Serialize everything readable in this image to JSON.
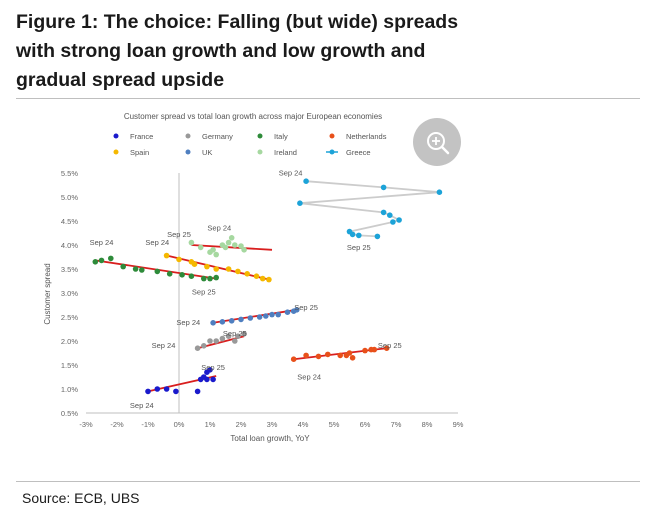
{
  "figure": {
    "title": "Figure 1: The choice: Falling (but wide) spreads with strong loan growth and low growth and gradual spread upside",
    "source": "Source: ECB, UBS"
  },
  "zoom_icon": "zoom-in-icon",
  "chart_data": {
    "type": "scatter",
    "title": "Customer spread vs total loan growth across major European economies",
    "xlabel": "Total loan growth, YoY",
    "ylabel": "Customer spread",
    "xlim": [
      -3,
      9
    ],
    "ylim": [
      0.5,
      5.5
    ],
    "x_ticks": [
      "-3%",
      "-2%",
      "-1%",
      "0%",
      "1%",
      "2%",
      "3%",
      "4%",
      "5%",
      "6%",
      "7%",
      "8%",
      "9%"
    ],
    "y_ticks": [
      "0.5%",
      "1.0%",
      "1.5%",
      "2.0%",
      "2.5%",
      "3.0%",
      "3.5%",
      "4.0%",
      "4.5%",
      "5.0%",
      "5.5%"
    ],
    "grid": false,
    "legend_position": "top",
    "series": [
      {
        "name": "France",
        "color": "#1a1acc",
        "trend": [
          [
            -1.0,
            0.95
          ],
          [
            1.2,
            1.27
          ]
        ],
        "points": [
          [
            -1.0,
            0.95
          ],
          [
            -0.7,
            1.0
          ],
          [
            -0.4,
            1.0
          ],
          [
            -0.1,
            0.95
          ],
          [
            0.6,
            0.95
          ],
          [
            0.7,
            1.2
          ],
          [
            0.8,
            1.25
          ],
          [
            0.9,
            1.2
          ],
          [
            0.9,
            1.35
          ],
          [
            1.0,
            1.4
          ],
          [
            1.1,
            1.2
          ]
        ]
      },
      {
        "name": "Germany",
        "color": "#999999",
        "trend": [
          [
            0.6,
            1.85
          ],
          [
            2.1,
            2.1
          ]
        ],
        "points": [
          [
            0.6,
            1.85
          ],
          [
            0.8,
            1.9
          ],
          [
            1.0,
            2.0
          ],
          [
            1.2,
            2.0
          ],
          [
            1.4,
            2.05
          ],
          [
            1.6,
            2.1
          ],
          [
            1.8,
            2.0
          ],
          [
            1.9,
            2.1
          ],
          [
            2.1,
            2.15
          ]
        ]
      },
      {
        "name": "Italy",
        "color": "#2e8b3a",
        "trend": [
          [
            -2.7,
            3.68
          ],
          [
            1.2,
            3.3
          ]
        ],
        "points": [
          [
            -2.7,
            3.65
          ],
          [
            -2.5,
            3.68
          ],
          [
            -2.2,
            3.72
          ],
          [
            -1.8,
            3.55
          ],
          [
            -1.4,
            3.5
          ],
          [
            -1.2,
            3.48
          ],
          [
            -0.7,
            3.45
          ],
          [
            -0.3,
            3.4
          ],
          [
            0.1,
            3.38
          ],
          [
            0.4,
            3.35
          ],
          [
            0.8,
            3.3
          ],
          [
            1.0,
            3.3
          ],
          [
            1.2,
            3.32
          ]
        ]
      },
      {
        "name": "Netherlands",
        "color": "#e8501a",
        "trend": [
          [
            3.7,
            1.62
          ],
          [
            6.7,
            1.85
          ]
        ],
        "points": [
          [
            3.7,
            1.62
          ],
          [
            4.1,
            1.7
          ],
          [
            4.5,
            1.68
          ],
          [
            4.8,
            1.72
          ],
          [
            5.2,
            1.7
          ],
          [
            5.4,
            1.7
          ],
          [
            5.5,
            1.75
          ],
          [
            5.6,
            1.65
          ],
          [
            6.0,
            1.8
          ],
          [
            6.2,
            1.82
          ],
          [
            6.3,
            1.82
          ],
          [
            6.7,
            1.85
          ]
        ]
      },
      {
        "name": "Spain",
        "color": "#f5b800",
        "trend": [
          [
            -0.4,
            3.78
          ],
          [
            2.9,
            3.28
          ]
        ],
        "points": [
          [
            -0.4,
            3.78
          ],
          [
            0.0,
            3.7
          ],
          [
            0.4,
            3.65
          ],
          [
            0.5,
            3.6
          ],
          [
            0.9,
            3.55
          ],
          [
            1.2,
            3.5
          ],
          [
            1.6,
            3.5
          ],
          [
            1.9,
            3.45
          ],
          [
            2.2,
            3.4
          ],
          [
            2.5,
            3.35
          ],
          [
            2.7,
            3.3
          ],
          [
            2.9,
            3.28
          ]
        ]
      },
      {
        "name": "UK",
        "color": "#4f7fc0",
        "trend": [
          [
            1.1,
            2.38
          ],
          [
            3.8,
            2.65
          ]
        ],
        "points": [
          [
            1.1,
            2.38
          ],
          [
            1.4,
            2.4
          ],
          [
            1.7,
            2.42
          ],
          [
            2.0,
            2.45
          ],
          [
            2.3,
            2.48
          ],
          [
            2.6,
            2.5
          ],
          [
            2.8,
            2.52
          ],
          [
            3.0,
            2.55
          ],
          [
            3.2,
            2.55
          ],
          [
            3.5,
            2.6
          ],
          [
            3.7,
            2.62
          ],
          [
            3.8,
            2.65
          ]
        ]
      },
      {
        "name": "Ireland",
        "color": "#a6d8a0",
        "trend": [
          [
            0.4,
            4.0
          ],
          [
            3.0,
            3.9
          ]
        ],
        "points": [
          [
            0.4,
            4.05
          ],
          [
            0.7,
            3.95
          ],
          [
            1.0,
            3.85
          ],
          [
            1.1,
            3.9
          ],
          [
            1.2,
            3.8
          ],
          [
            1.4,
            4.0
          ],
          [
            1.5,
            3.95
          ],
          [
            1.6,
            4.05
          ],
          [
            1.7,
            4.15
          ],
          [
            1.8,
            4.0
          ],
          [
            2.0,
            3.98
          ],
          [
            2.1,
            3.9
          ]
        ]
      },
      {
        "name": "Greece",
        "color": "#1ca3d8",
        "trend": null,
        "points": [
          [
            4.1,
            5.33
          ],
          [
            6.6,
            5.2
          ],
          [
            8.4,
            5.1
          ],
          [
            3.9,
            4.87
          ],
          [
            6.6,
            4.68
          ],
          [
            6.8,
            4.62
          ],
          [
            7.1,
            4.52
          ],
          [
            6.9,
            4.48
          ],
          [
            5.5,
            4.28
          ],
          [
            5.6,
            4.22
          ],
          [
            5.8,
            4.2
          ],
          [
            6.4,
            4.18
          ]
        ]
      }
    ],
    "annotations": [
      {
        "text": "Sep 24",
        "x": -2.5,
        "y": 4.0
      },
      {
        "text": "Sep 24",
        "x": -0.7,
        "y": 4.0
      },
      {
        "text": "Sep 24",
        "x": 1.3,
        "y": 4.3
      },
      {
        "text": "Sep 25",
        "x": 0.0,
        "y": 4.17
      },
      {
        "text": "Sep 24",
        "x": 3.6,
        "y": 5.45
      },
      {
        "text": "Sep 25",
        "x": 5.8,
        "y": 3.9
      },
      {
        "text": "Sep 25",
        "x": 0.8,
        "y": 2.97
      },
      {
        "text": "Sep 25",
        "x": 4.1,
        "y": 2.65
      },
      {
        "text": "Sep 24",
        "x": 0.3,
        "y": 2.33
      },
      {
        "text": "Sep 25",
        "x": 1.8,
        "y": 2.1
      },
      {
        "text": "Sep 24",
        "x": -0.5,
        "y": 1.85
      },
      {
        "text": "Sep 25",
        "x": 6.8,
        "y": 1.85
      },
      {
        "text": "Sep 24",
        "x": 4.2,
        "y": 1.2
      },
      {
        "text": "Sep 25",
        "x": 1.1,
        "y": 1.4
      },
      {
        "text": "Sep 24",
        "x": -1.2,
        "y": 0.6
      }
    ]
  }
}
